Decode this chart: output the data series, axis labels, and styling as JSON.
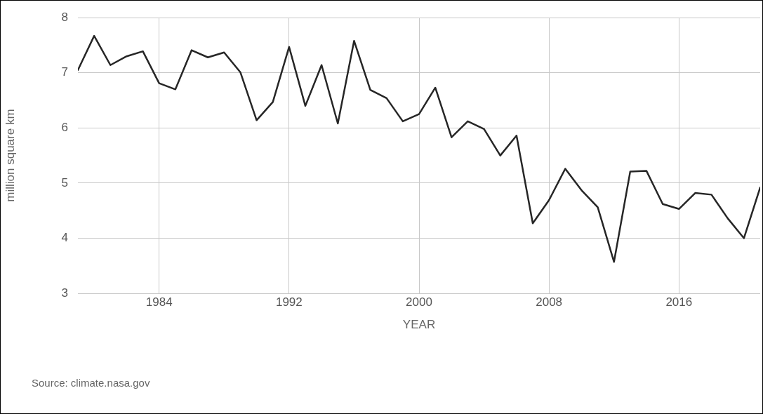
{
  "chart_data": {
    "type": "line",
    "xlabel": "YEAR",
    "ylabel": "million square km",
    "x": [
      1979,
      1980,
      1981,
      1982,
      1983,
      1984,
      1985,
      1986,
      1987,
      1988,
      1989,
      1990,
      1991,
      1992,
      1993,
      1994,
      1995,
      1996,
      1997,
      1998,
      1999,
      2000,
      2001,
      2002,
      2003,
      2004,
      2005,
      2006,
      2007,
      2008,
      2009,
      2010,
      2011,
      2012,
      2013,
      2014,
      2015,
      2016,
      2017,
      2018,
      2019,
      2020,
      2021
    ],
    "series": [
      {
        "color": "#262626",
        "values": [
          7.05,
          7.67,
          7.14,
          7.3,
          7.39,
          6.81,
          6.7,
          7.41,
          7.28,
          7.37,
          7.01,
          6.14,
          6.47,
          7.47,
          6.4,
          7.14,
          6.08,
          7.58,
          6.69,
          6.54,
          6.12,
          6.25,
          6.73,
          5.83,
          6.12,
          5.98,
          5.5,
          5.86,
          4.27,
          4.69,
          5.26,
          4.87,
          4.56,
          3.57,
          5.21,
          5.22,
          4.62,
          4.53,
          4.82,
          4.79,
          4.36,
          4.0,
          4.92
        ]
      }
    ],
    "xlim": [
      1979,
      2021
    ],
    "xticks": [
      1984,
      1992,
      2000,
      2008,
      2016
    ],
    "ylim": [
      3,
      8
    ],
    "yticks": [
      3,
      4,
      5,
      6,
      7,
      8
    ],
    "grid": true,
    "legend": false,
    "marker": "none",
    "line_style": "solid",
    "annotations": [
      "Source: climate.nasa.gov"
    ]
  }
}
